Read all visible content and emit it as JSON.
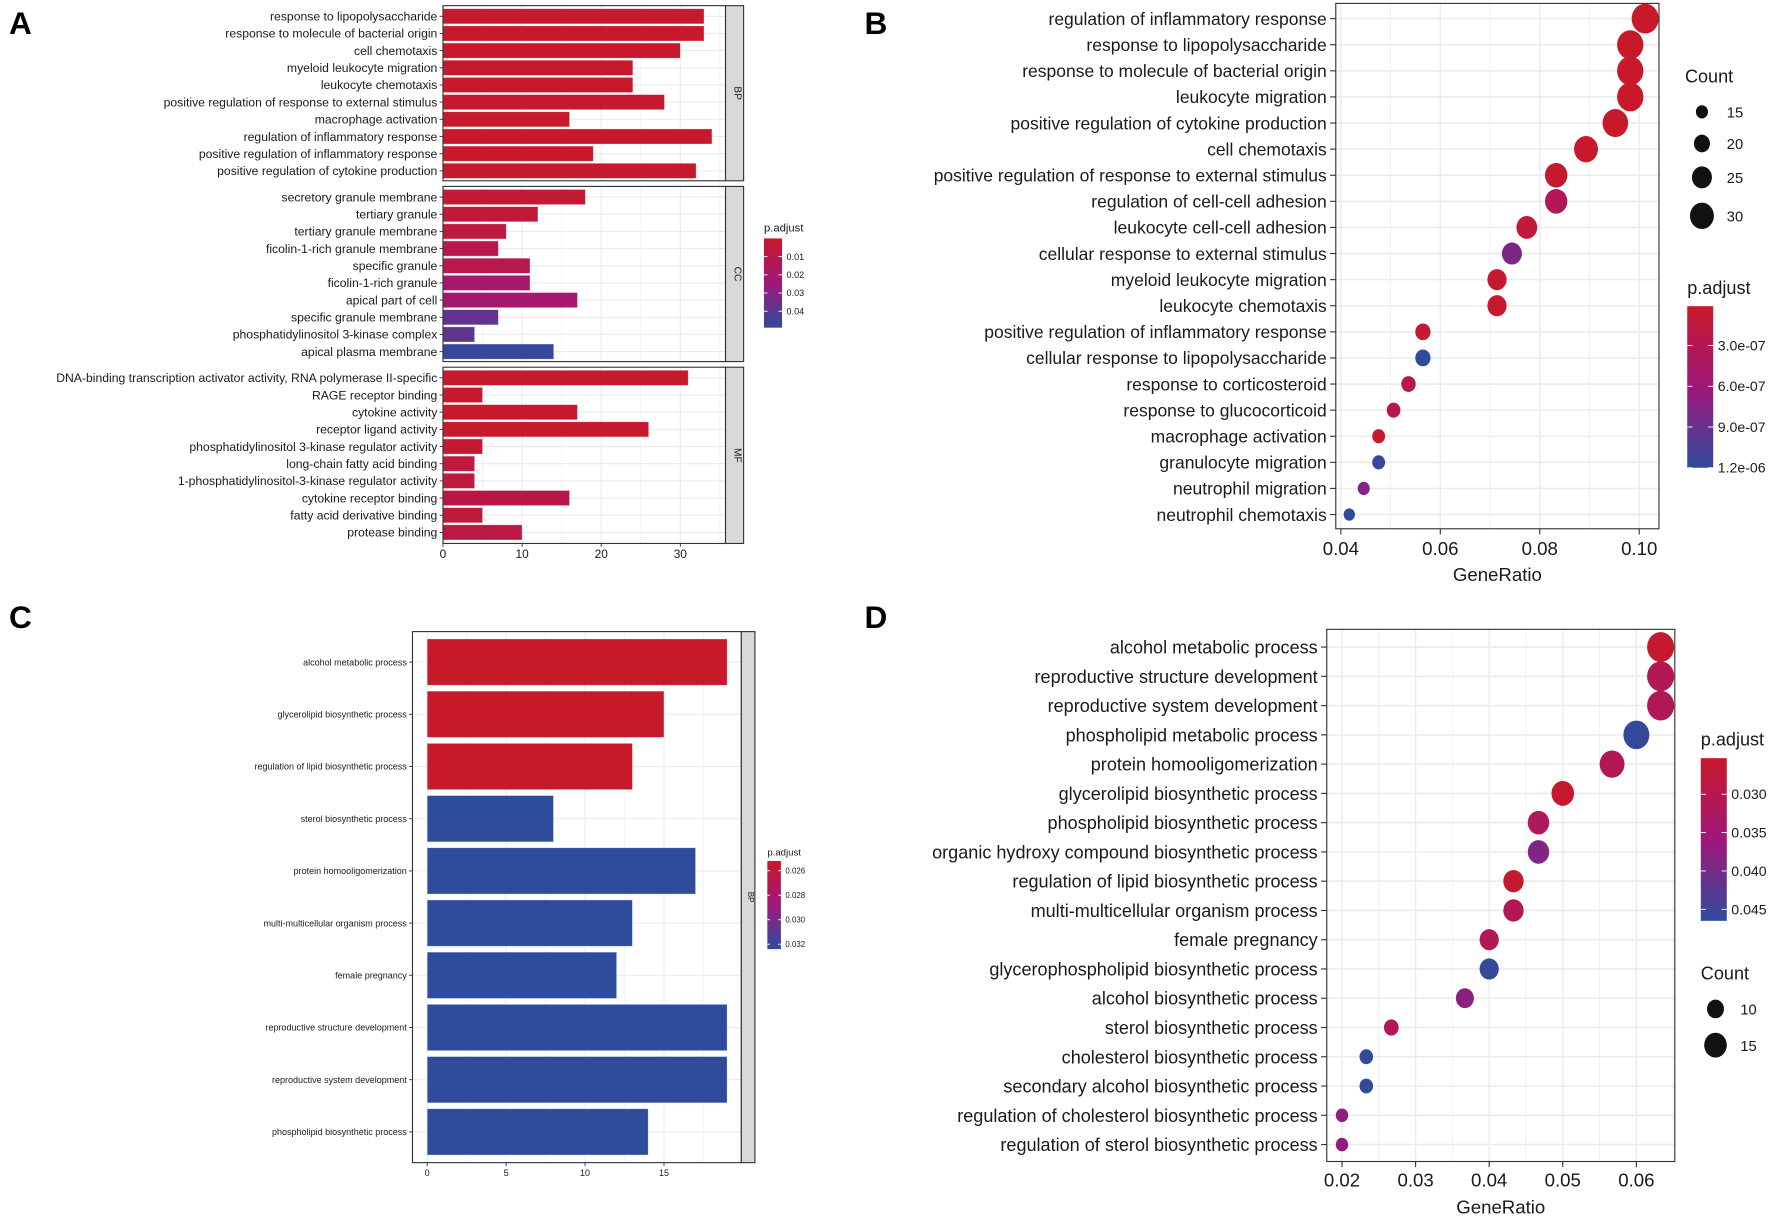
{
  "panel_labels": [
    "A",
    "B",
    "C",
    "D"
  ],
  "colors": {
    "low": "#c8192a",
    "mid": "#a0177a",
    "high": "#2f4b9c",
    "grid": "#ebebeb",
    "strip": "#d9d9d9"
  },
  "chart_data": [
    {
      "type": "bar",
      "panel": "A",
      "xlim": [
        0,
        35.6
      ],
      "xticks": [
        0,
        10,
        20,
        30
      ],
      "xtick_labels": [
        "0",
        "10",
        "20",
        "30"
      ],
      "legend": {
        "title": "p.adjust",
        "range": [
          0,
          0.049
        ],
        "ticks": [
          0.01,
          0.02,
          0.03,
          0.04
        ],
        "tick_labels": [
          "0.01",
          "0.02",
          "0.03",
          "0.04"
        ]
      },
      "facets": [
        {
          "name": "BP",
          "categories": [
            "response to lipopolysaccharide",
            "response to molecule of bacterial origin",
            "cell chemotaxis",
            "myeloid leukocyte migration",
            "leukocyte chemotaxis",
            "positive regulation of response to external stimulus",
            "macrophage activation",
            "regulation of inflammatory response",
            "positive regulation of inflammatory response",
            "positive regulation of cytokine production"
          ],
          "values": [
            33,
            33,
            30,
            24,
            24,
            28,
            16,
            34,
            19,
            32
          ],
          "p_adjust": [
            0.001,
            0.001,
            0.001,
            0.001,
            0.001,
            0.001,
            0.001,
            0.001,
            0.001,
            0.001
          ]
        },
        {
          "name": "CC",
          "categories": [
            "secretory granule membrane",
            "tertiary granule",
            "tertiary granule membrane",
            "ficolin-1-rich granule membrane",
            "specific granule",
            "ficolin-1-rich granule",
            "apical part of cell",
            "specific granule membrane",
            "phosphatidylinositol 3-kinase complex",
            "apical plasma membrane"
          ],
          "values": [
            18,
            12,
            8,
            7,
            11,
            11,
            17,
            7,
            4,
            14
          ],
          "p_adjust": [
            0.003,
            0.005,
            0.006,
            0.01,
            0.01,
            0.02,
            0.021,
            0.038,
            0.039,
            0.048
          ]
        },
        {
          "name": "MF",
          "categories": [
            "DNA-binding transcription activator activity, RNA polymerase II-specific",
            "RAGE receptor binding",
            "cytokine activity",
            "receptor ligand activity",
            "phosphatidylinositol 3-kinase regulator activity",
            "long-chain fatty acid binding",
            "1-phosphatidylinositol-3-kinase regulator activity",
            "cytokine receptor binding",
            "fatty acid derivative binding",
            "protease binding"
          ],
          "values": [
            31,
            5,
            17,
            26,
            5,
            4,
            4,
            16,
            5,
            10
          ],
          "p_adjust": [
            0.001,
            0.001,
            0.001,
            0.001,
            0.002,
            0.006,
            0.006,
            0.009,
            0.005,
            0.008
          ]
        }
      ]
    },
    {
      "type": "scatter",
      "panel": "B",
      "xlabel": "GeneRatio",
      "xlim": [
        0.039,
        0.104
      ],
      "xticks": [
        0.04,
        0.06,
        0.08,
        0.1
      ],
      "xtick_labels": [
        "0.04",
        "0.06",
        "0.08",
        "0.10"
      ],
      "categories": [
        "regulation of inflammatory response",
        "response to lipopolysaccharide",
        "response to molecule of bacterial origin",
        "leukocyte migration",
        "positive regulation of cytokine production",
        "cell chemotaxis",
        "positive regulation of response to external stimulus",
        "regulation of cell-cell adhesion",
        "leukocyte cell-cell adhesion",
        "cellular response to external stimulus",
        "myeloid leukocyte migration",
        "leukocyte chemotaxis",
        "positive regulation of inflammatory response",
        "cellular response to lipopolysaccharide",
        "response to corticosteroid",
        "response to glucocorticoid",
        "macrophage activation",
        "granulocyte migration",
        "neutrophil migration",
        "neutrophil chemotaxis"
      ],
      "gene_ratio": [
        0.1012,
        0.0982,
        0.0982,
        0.0982,
        0.0952,
        0.0893,
        0.0833,
        0.0833,
        0.0774,
        0.0744,
        0.0714,
        0.0714,
        0.0565,
        0.0565,
        0.0536,
        0.0506,
        0.0476,
        0.0476,
        0.0446,
        0.0417
      ],
      "count": [
        34,
        33,
        33,
        33,
        32,
        30,
        28,
        28,
        26,
        25,
        24,
        24,
        19,
        19,
        18,
        17,
        16,
        16,
        15,
        14
      ],
      "p_adjust": [
        1e-08,
        1e-08,
        1e-08,
        1e-08,
        1e-08,
        2e-08,
        5e-08,
        3.2e-07,
        1.2e-07,
        8e-07,
        3e-08,
        3e-08,
        1e-07,
        1.2e-06,
        2.6e-07,
        2.5e-07,
        5e-08,
        1.15e-06,
        7.5e-07,
        1.2e-06
      ],
      "size_legend": {
        "title": "Count",
        "values": [
          15,
          20,
          25,
          30
        ],
        "labels": [
          "15",
          "20",
          "25",
          "30"
        ]
      },
      "legend": {
        "title": "p.adjust",
        "range": [
          1e-08,
          1.2e-06
        ],
        "ticks": [
          3e-07,
          6e-07,
          9e-07,
          1.2e-06
        ],
        "tick_labels": [
          "3.0e-07",
          "6.0e-07",
          "9.0e-07",
          "1.2e-06"
        ]
      }
    },
    {
      "type": "bar",
      "panel": "C",
      "xlim": [
        0,
        19.9
      ],
      "xticks": [
        0,
        5,
        10,
        15
      ],
      "xtick_labels": [
        "0",
        "5",
        "10",
        "15"
      ],
      "legend": {
        "title": "p.adjust",
        "range": [
          0.0252,
          0.0324
        ],
        "ticks": [
          0.026,
          0.028,
          0.03,
          0.032
        ],
        "tick_labels": [
          "0.026",
          "0.028",
          "0.030",
          "0.032"
        ]
      },
      "facets": [
        {
          "name": "BP",
          "categories": [
            "alcohol metabolic process",
            "glycerolipid biosynthetic process",
            "regulation of lipid biosynthetic process",
            "sterol biosynthetic process",
            "protein homooligomerization",
            "multi-multicellular organism process",
            "female pregnancy",
            "reproductive structure development",
            "reproductive system development",
            "phospholipid biosynthetic process"
          ],
          "values": [
            19,
            15,
            13,
            8,
            17,
            13,
            12,
            19,
            19,
            14
          ],
          "p_adjust": [
            0.0252,
            0.0252,
            0.0252,
            0.0324,
            0.0324,
            0.0324,
            0.0324,
            0.0324,
            0.0324,
            0.0324
          ]
        }
      ]
    },
    {
      "type": "scatter",
      "panel": "D",
      "xlabel": "GeneRatio",
      "xlim": [
        0.018,
        0.0647
      ],
      "xticks": [
        0.02,
        0.03,
        0.04,
        0.05,
        0.06
      ],
      "xtick_labels": [
        "0.02",
        "0.03",
        "0.04",
        "0.05",
        "0.06"
      ],
      "categories": [
        "alcohol metabolic process",
        "reproductive structure development",
        "reproductive system development",
        "phospholipid metabolic process",
        "protein homooligomerization",
        "glycerolipid biosynthetic process",
        "phospholipid biosynthetic process",
        "organic hydroxy compound biosynthetic process",
        "regulation of lipid biosynthetic process",
        "multi-multicellular organism process",
        "female pregnancy",
        "glycerophospholipid biosynthetic process",
        "alcohol biosynthetic process",
        "sterol biosynthetic process",
        "cholesterol biosynthetic process",
        "secondary alcohol biosynthetic process",
        "regulation of cholesterol biosynthetic process",
        "regulation of sterol biosynthetic process"
      ],
      "gene_ratio": [
        0.0633,
        0.0633,
        0.0633,
        0.06,
        0.0567,
        0.05,
        0.0467,
        0.0467,
        0.0433,
        0.0433,
        0.04,
        0.04,
        0.0367,
        0.0267,
        0.0233,
        0.0233,
        0.02,
        0.02
      ],
      "count": [
        19,
        19,
        19,
        18,
        17,
        15,
        14,
        14,
        13,
        13,
        12,
        12,
        11,
        8,
        7,
        7,
        6,
        6
      ],
      "p_adjust": [
        0.026,
        0.031,
        0.031,
        0.046,
        0.031,
        0.026,
        0.032,
        0.039,
        0.026,
        0.031,
        0.031,
        0.046,
        0.038,
        0.031,
        0.046,
        0.046,
        0.037,
        0.037
      ],
      "size_legend": {
        "title": "Count",
        "values": [
          10,
          15
        ],
        "labels": [
          "10",
          "15"
        ]
      },
      "legend": {
        "title": "p.adjust",
        "range": [
          0.0253,
          0.0465
        ],
        "ticks": [
          0.03,
          0.035,
          0.04,
          0.045
        ],
        "tick_labels": [
          "0.030",
          "0.035",
          "0.040",
          "0.045"
        ]
      }
    }
  ]
}
